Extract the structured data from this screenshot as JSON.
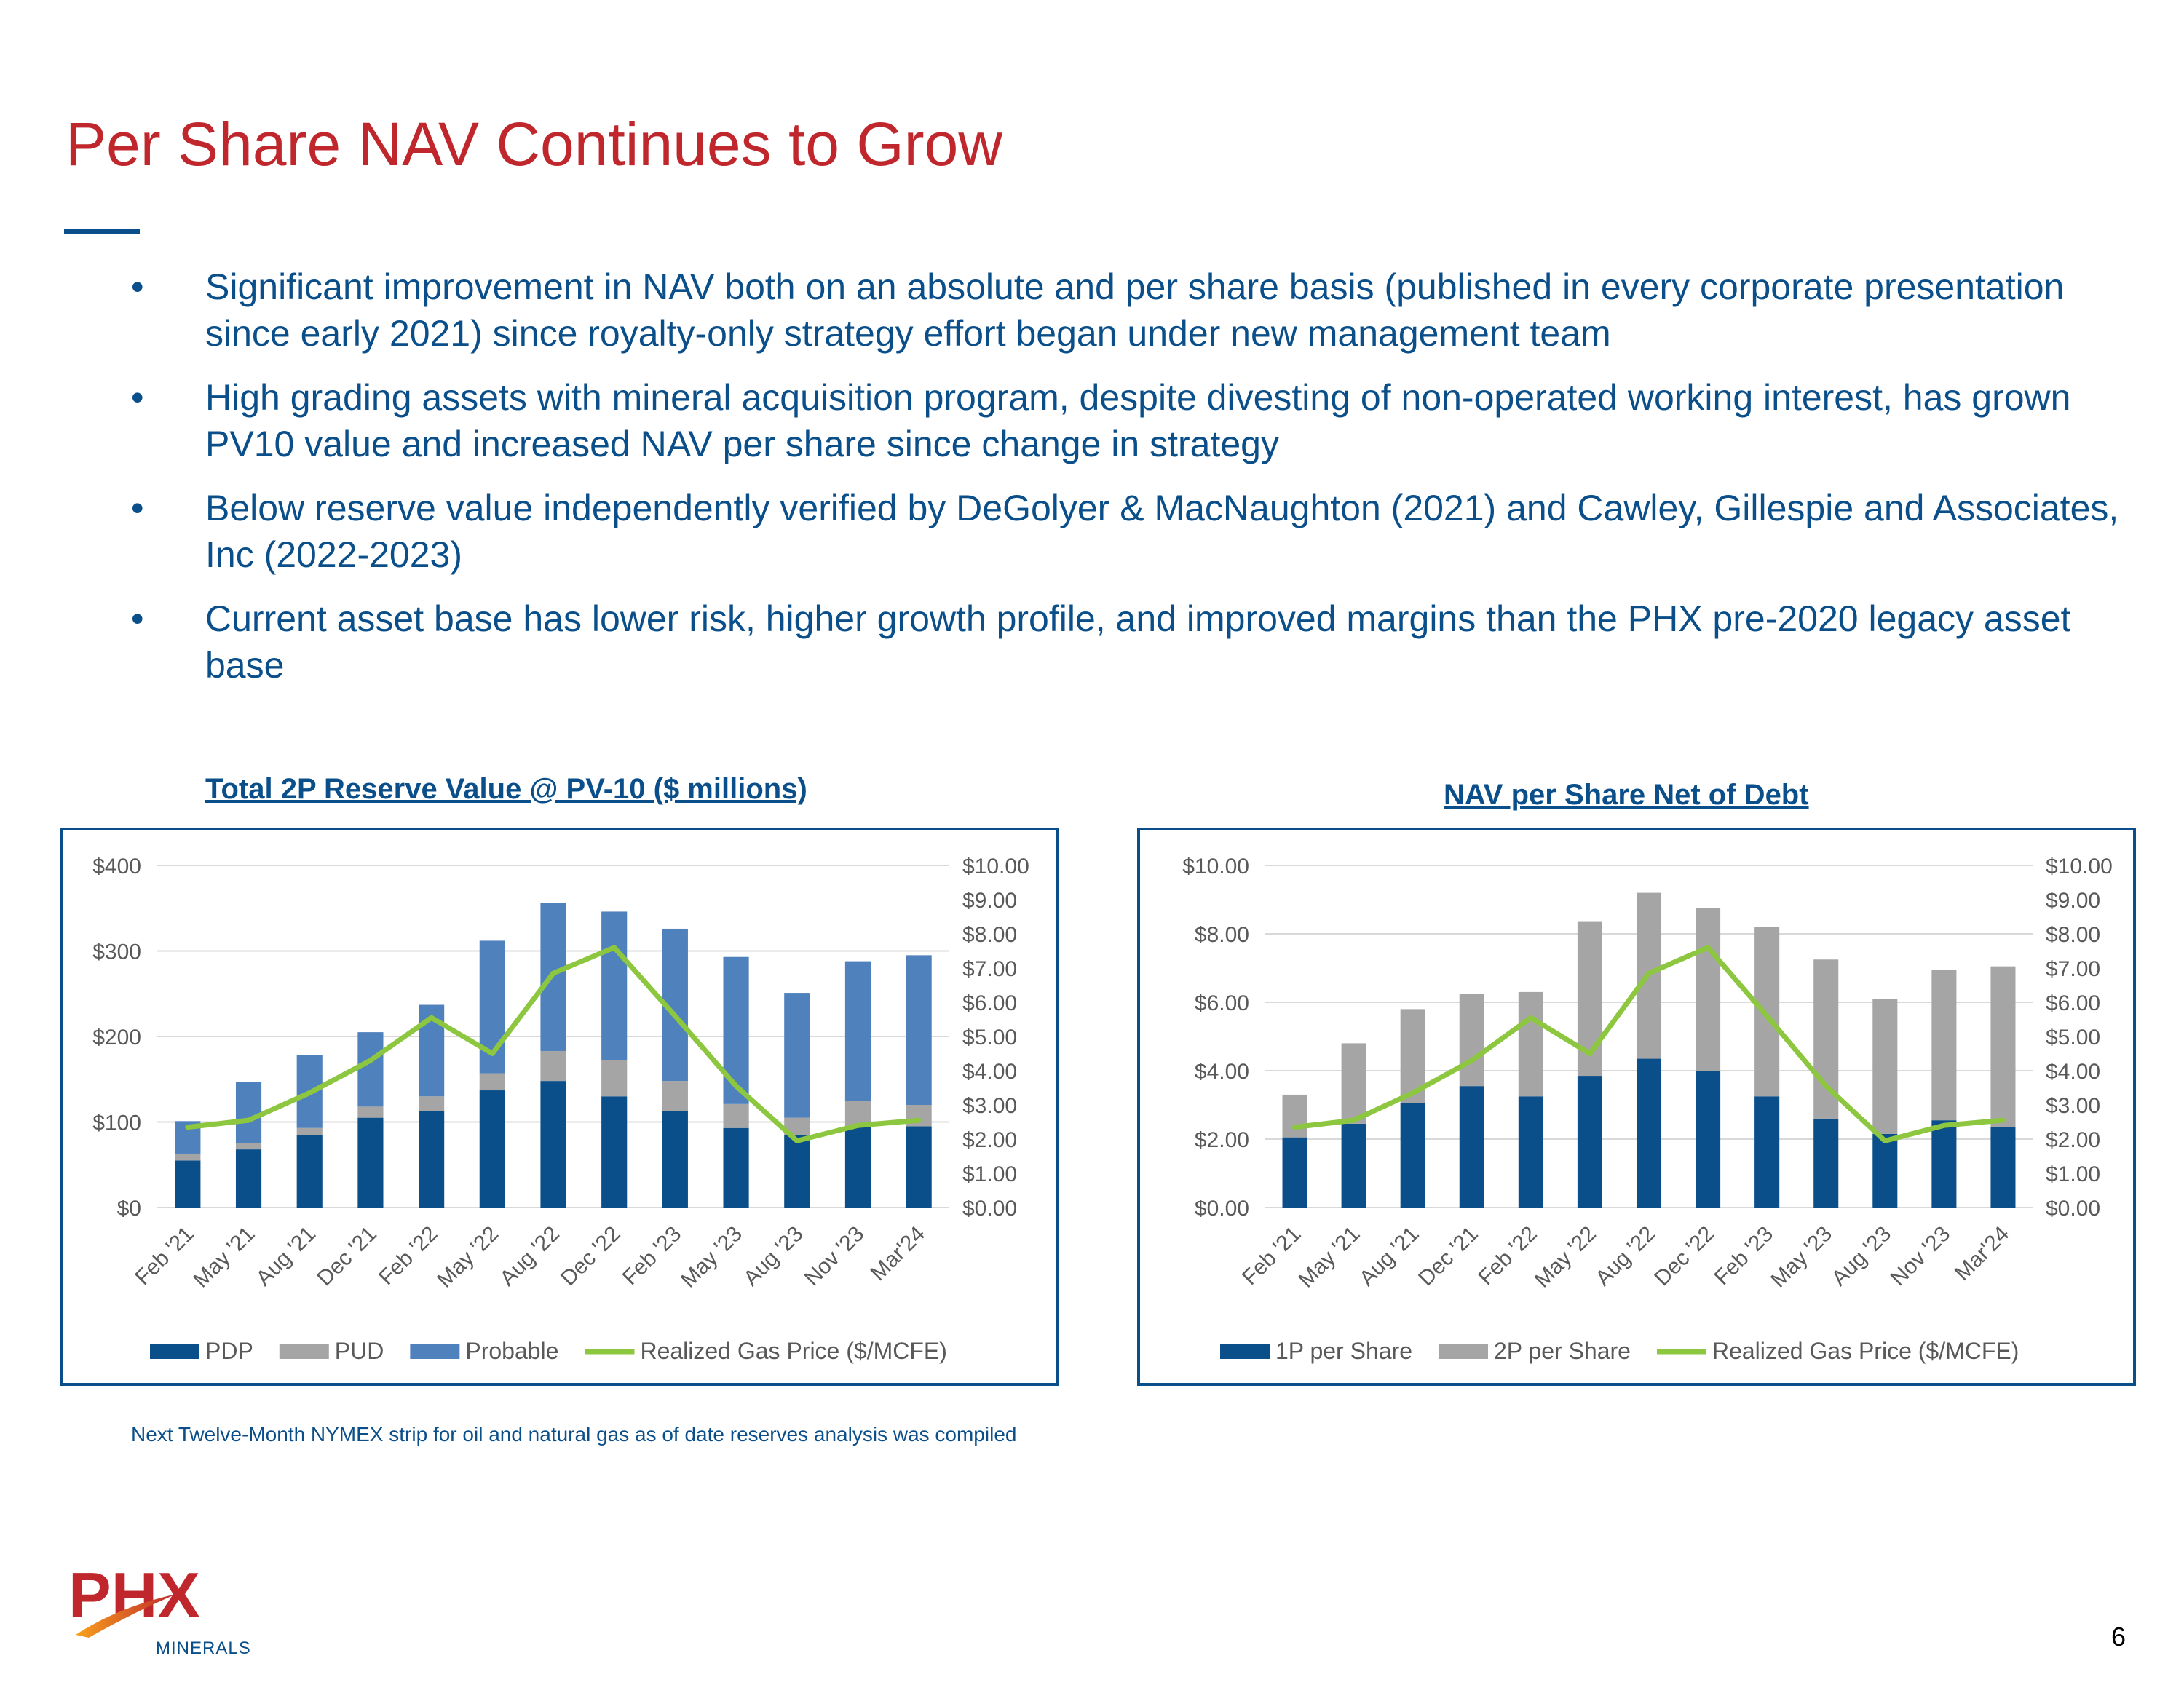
{
  "title": "Per Share NAV Continues to Grow",
  "bullet_symbol": "•",
  "bullets": [
    "Significant improvement in NAV both on an absolute and per share basis (published in every corporate presentation since early 2021) since royalty-only strategy effort began under new management team",
    "High grading assets with mineral acquisition program, despite divesting of non-operated working interest, has grown PV10 value and increased NAV per share since change in strategy",
    "Below reserve value independently verified by DeGolyer & MacNaughton (2021) and Cawley, Gillespie and Associates, Inc (2022-2023)",
    "Current asset base has lower risk, higher growth profile, and improved margins than the PHX pre-2020 legacy asset base"
  ],
  "colors": {
    "title": "#C0272D",
    "text": "#0B4F8A",
    "navy": "#0B4F8A",
    "grey": "#A5A5A5",
    "blue": "#4F81BD",
    "green": "#8DC63F"
  },
  "chart_data": [
    {
      "type": "bar",
      "stacked": true,
      "title": "Total 2P Reserve Value @ PV-10 ($ millions)",
      "categories": [
        "Feb '21",
        "May '21",
        "Aug '21",
        "Dec '21",
        "Feb '22",
        "May '22",
        "Aug '22",
        "Dec '22",
        "Feb '23",
        "May '23",
        "Aug '23",
        "Nov '23",
        "Mar'24"
      ],
      "series": [
        {
          "name": "PDP",
          "axis": "left",
          "color": "#0B4F8A",
          "values": [
            55,
            68,
            85,
            105,
            113,
            137,
            148,
            130,
            113,
            93,
            85,
            95,
            95
          ]
        },
        {
          "name": "PUD",
          "axis": "left",
          "color": "#A5A5A5",
          "values": [
            8,
            7,
            8,
            13,
            17,
            20,
            35,
            42,
            35,
            28,
            20,
            30,
            25
          ]
        },
        {
          "name": "Probable",
          "axis": "left",
          "color": "#4F81BD",
          "values": [
            38,
            72,
            85,
            87,
            107,
            155,
            173,
            174,
            178,
            172,
            146,
            163,
            175
          ]
        },
        {
          "name": "Realized Gas Price ($/MCFE)",
          "type": "line",
          "axis": "right",
          "color": "#8DC63F",
          "values": [
            2.35,
            2.55,
            3.35,
            4.3,
            5.55,
            4.5,
            6.85,
            7.6,
            5.6,
            3.55,
            1.95,
            2.4,
            2.55
          ]
        }
      ],
      "y_left": {
        "min": 0,
        "max": 400,
        "ticks": [
          "$0",
          "$100",
          "$200",
          "$300",
          "$400"
        ]
      },
      "y_right": {
        "min": 0,
        "max": 10,
        "ticks": [
          "$0.00",
          "$1.00",
          "$2.00",
          "$3.00",
          "$4.00",
          "$5.00",
          "$6.00",
          "$7.00",
          "$8.00",
          "$9.00",
          "$10.00"
        ]
      },
      "legend": [
        "PDP",
        "PUD",
        "Probable",
        "Realized Gas Price ($/MCFE)"
      ]
    },
    {
      "type": "bar",
      "stacked": true,
      "title": "NAV per Share Net of Debt",
      "categories": [
        "Feb '21",
        "May '21",
        "Aug '21",
        "Dec '21",
        "Feb '22",
        "May '22",
        "Aug '22",
        "Dec '22",
        "Feb '23",
        "May '23",
        "Aug '23",
        "Nov '23",
        "Mar'24"
      ],
      "series": [
        {
          "name": "1P per Share",
          "axis": "left",
          "color": "#0B4F8A",
          "values": [
            2.05,
            2.45,
            3.05,
            3.55,
            3.25,
            3.85,
            4.35,
            4.0,
            3.25,
            2.6,
            2.15,
            2.55,
            2.35
          ]
        },
        {
          "name": "2P per Share",
          "axis": "left",
          "color": "#A5A5A5",
          "values": [
            1.25,
            2.35,
            2.75,
            2.7,
            3.05,
            4.5,
            4.85,
            4.75,
            4.95,
            4.65,
            3.95,
            4.4,
            4.7
          ]
        },
        {
          "name": "Realized Gas Price ($/MCFE)",
          "type": "line",
          "axis": "right",
          "color": "#8DC63F",
          "values": [
            2.35,
            2.55,
            3.35,
            4.3,
            5.55,
            4.5,
            6.85,
            7.6,
            5.6,
            3.55,
            1.95,
            2.4,
            2.55
          ]
        }
      ],
      "y_left": {
        "min": 0,
        "max": 10,
        "ticks": [
          "$0.00",
          "$2.00",
          "$4.00",
          "$6.00",
          "$8.00",
          "$10.00"
        ]
      },
      "y_right": {
        "min": 0,
        "max": 10,
        "ticks": [
          "$0.00",
          "$1.00",
          "$2.00",
          "$3.00",
          "$4.00",
          "$5.00",
          "$6.00",
          "$7.00",
          "$8.00",
          "$9.00",
          "$10.00"
        ]
      },
      "legend": [
        "1P per Share",
        "2P per Share",
        "Realized Gas Price ($/MCFE)"
      ]
    }
  ],
  "footnote": "Next Twelve-Month NYMEX strip for oil and natural gas as of date reserves analysis was compiled",
  "logo": {
    "wordmark": "PHX",
    "subtext": "MINERALS"
  },
  "page_number": "6"
}
